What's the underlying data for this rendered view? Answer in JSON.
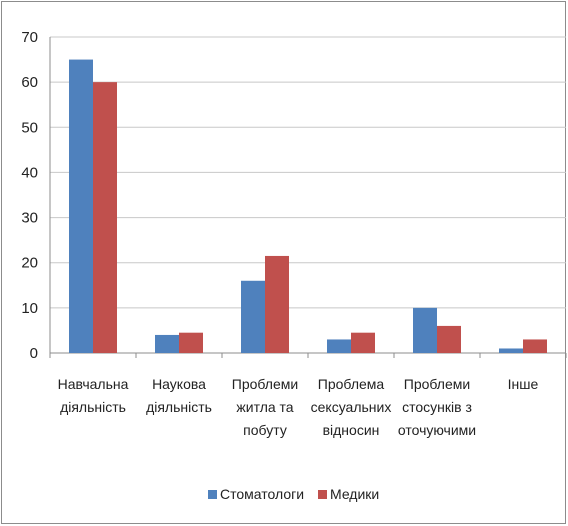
{
  "chart_data": {
    "type": "bar",
    "categories": [
      [
        "Навчальна",
        "діяльність"
      ],
      [
        "Наукова",
        "діяльність"
      ],
      [
        "Проблеми",
        "житла та",
        "побуту"
      ],
      [
        "Проблема",
        "сексуальних",
        "відносин"
      ],
      [
        "Проблеми",
        "стосунків з",
        "оточуючими"
      ],
      [
        "Інше"
      ]
    ],
    "series": [
      {
        "name": "Стоматологи",
        "color": "#4f81bd",
        "values": [
          65,
          4,
          16,
          3,
          10,
          1
        ]
      },
      {
        "name": "Медики",
        "color": "#c0504d",
        "values": [
          60,
          4.5,
          21.5,
          4.5,
          6,
          3
        ]
      }
    ],
    "ylim": [
      0,
      70
    ],
    "yticks": [
      "0",
      "10",
      "20",
      "30",
      "40",
      "50",
      "60",
      "70"
    ],
    "grid": true,
    "legend_position": "bottom",
    "title": "",
    "xlabel": "",
    "ylabel": ""
  }
}
